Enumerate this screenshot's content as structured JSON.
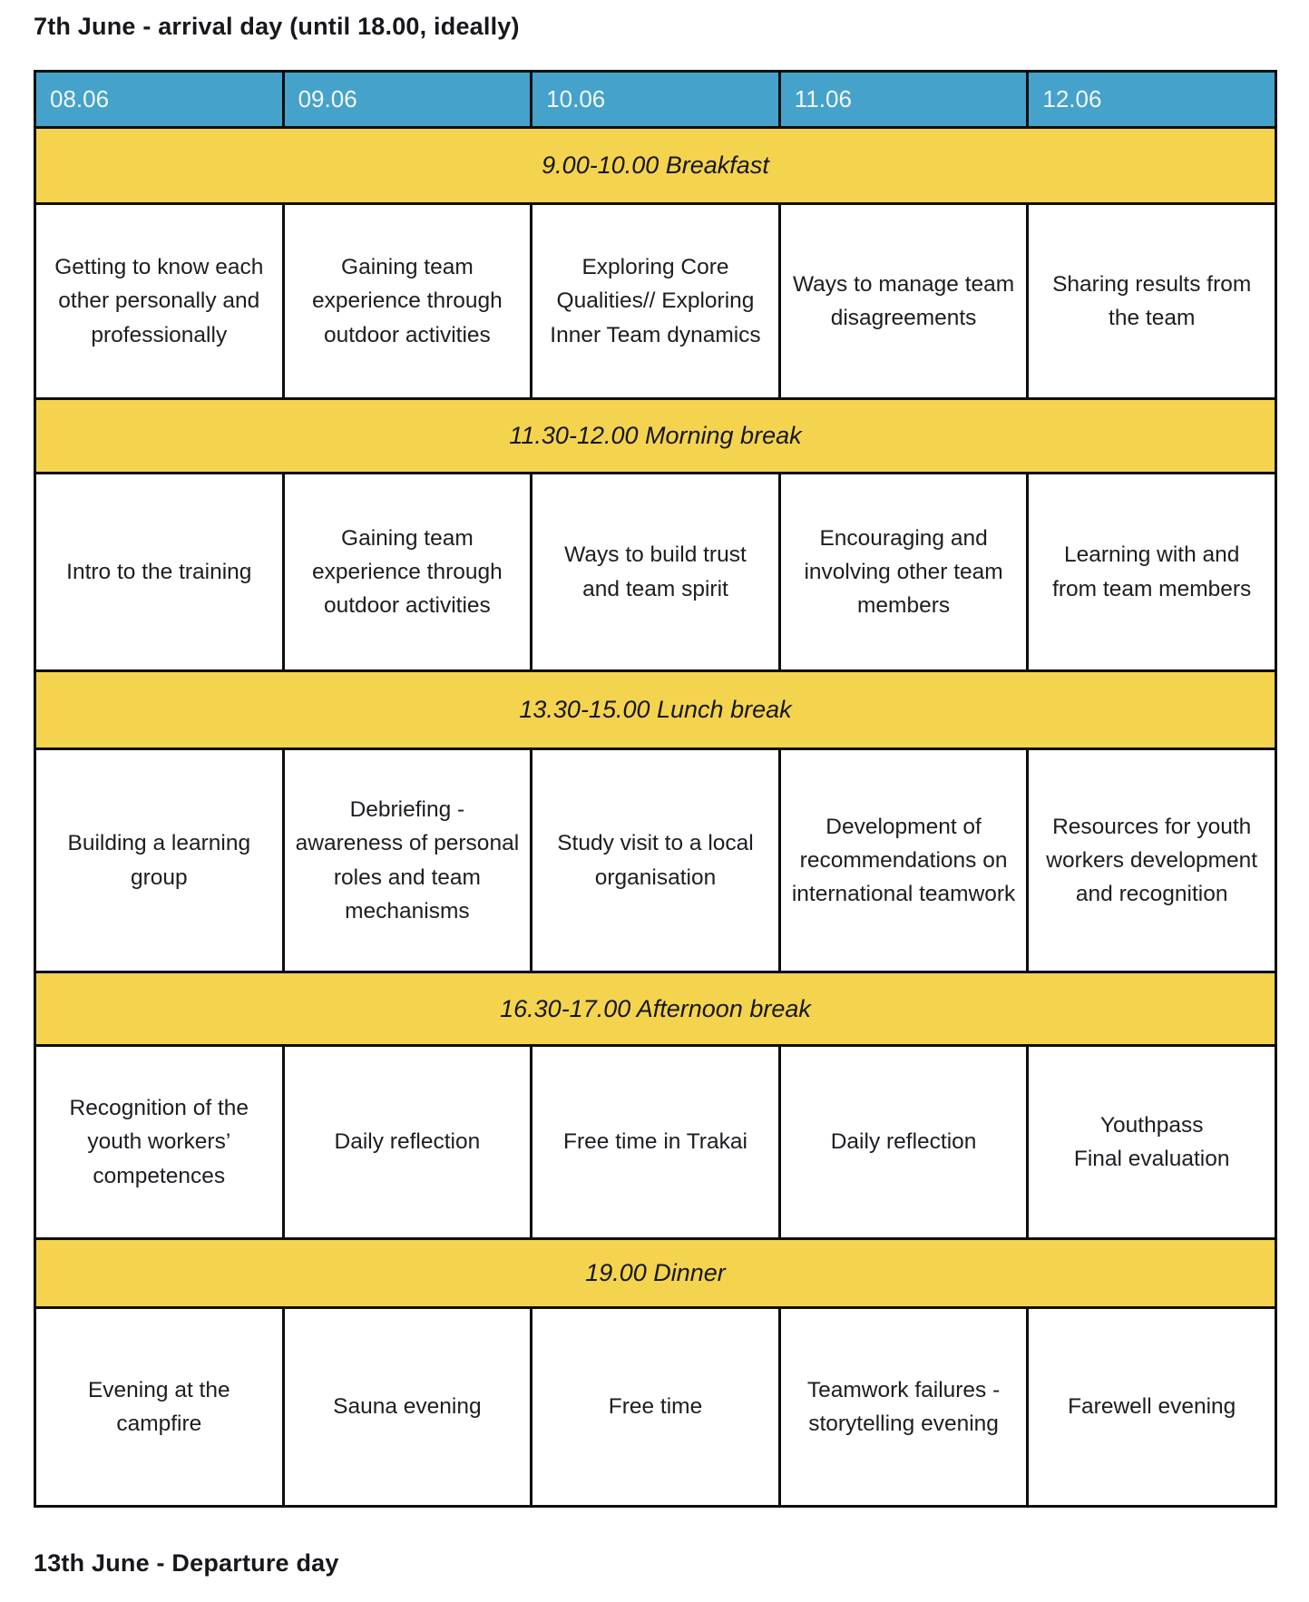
{
  "title_top": "7th June - arrival day (until 18.00, ideally)",
  "title_bottom": "13th June - Departure day",
  "colors": {
    "header_bg": "#45a2ca",
    "header_text": "#f2f6f8",
    "break_bg": "#f4d34f",
    "border": "#0e0e10",
    "text": "#1d1d22"
  },
  "header_days": [
    "08.06",
    "09.06",
    "10.06",
    "11.06",
    "12.06"
  ],
  "breaks": {
    "breakfast": "9.00-10.00 Breakfast",
    "morning": "11.30-12.00 Morning break",
    "lunch": "13.30-15.00 Lunch break",
    "afternoon": "16.30-17.00 Afternoon break",
    "dinner": "19.00 Dinner"
  },
  "rows": {
    "session1": [
      "Getting to know each other personally and professionally",
      "Gaining team experience through outdoor activities",
      "Exploring Core Qualities// Exploring Inner Team dynamics",
      "Ways to manage team disagreements",
      "Sharing results from the team"
    ],
    "session2": [
      "Intro to the training",
      "Gaining team experience through outdoor activities",
      "Ways to build trust and team spirit",
      "Encouraging and involving other team members",
      "Learning with and from team members"
    ],
    "session3": [
      "Building a learning group",
      "Debriefing - awareness of personal roles and team mechanisms",
      "Study visit to a local organisation",
      "Development of recommendations on international teamwork",
      "Resources for youth workers development and recognition"
    ],
    "session4": [
      "Recognition of the youth workers’ competences",
      "Daily reflection",
      "Free time in Trakai",
      "Daily reflection",
      "Youthpass\nFinal evaluation"
    ],
    "session5": [
      "Evening at the campfire",
      "Sauna evening",
      "Free time",
      "Teamwork failures - storytelling evening",
      "Farewell evening"
    ]
  }
}
